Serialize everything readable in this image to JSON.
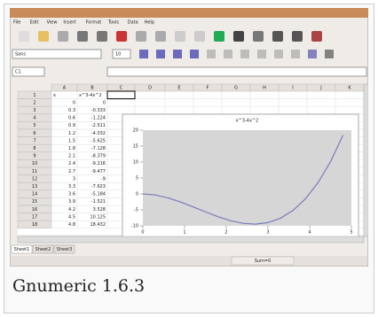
{
  "window": {
    "menu": [
      "File",
      "Edit",
      "View",
      "Insert",
      "Format",
      "Tools",
      "Data",
      "Help"
    ],
    "font_name": "Sans",
    "font_size": "10",
    "cell_ref": "C1"
  },
  "sheet": {
    "columns": [
      "A",
      "B",
      "C",
      "D",
      "E",
      "F",
      "G",
      "H",
      "I",
      "J",
      "K"
    ],
    "rows": [
      1,
      2,
      3,
      4,
      5,
      6,
      7,
      8,
      9,
      10,
      11,
      12,
      13,
      14,
      15,
      16,
      17,
      18
    ],
    "cells": [
      [
        "x",
        "x^3-4x^2"
      ],
      [
        0,
        0
      ],
      [
        0.3,
        -0.333
      ],
      [
        0.6,
        -1.224
      ],
      [
        0.9,
        -2.511
      ],
      [
        1.2,
        -4.032
      ],
      [
        1.5,
        -5.625
      ],
      [
        1.8,
        -7.128
      ],
      [
        2.1,
        -8.379
      ],
      [
        2.4,
        -9.216
      ],
      [
        2.7,
        -9.477
      ],
      [
        3,
        -9
      ],
      [
        3.3,
        -7.623
      ],
      [
        3.6,
        -5.184
      ],
      [
        3.9,
        -1.521
      ],
      [
        4.2,
        3.528
      ],
      [
        4.5,
        10.125
      ],
      [
        4.8,
        18.432
      ]
    ]
  },
  "tabs": [
    "Sheet1",
    "Sheet2",
    "Sheet3"
  ],
  "status": "Sum=0",
  "chart_data": {
    "type": "line",
    "title": "x^3-4x^2",
    "color": "#7b7bbd",
    "x": [
      0,
      0.3,
      0.6,
      0.9,
      1.2,
      1.5,
      1.8,
      2.1,
      2.4,
      2.7,
      3,
      3.3,
      3.6,
      3.9,
      4.2,
      4.5,
      4.8
    ],
    "values": [
      0,
      -0.333,
      -1.224,
      -2.511,
      -4.032,
      -5.625,
      -7.128,
      -8.379,
      -9.216,
      -9.477,
      -9,
      -7.623,
      -5.184,
      -1.521,
      3.528,
      10.125,
      18.432
    ],
    "xlim": [
      0,
      5
    ],
    "ylim": [
      -10,
      20
    ],
    "xticks": [
      0,
      1,
      2,
      3,
      4,
      5
    ],
    "yticks": [
      -10,
      -5,
      0,
      5,
      10,
      15,
      20
    ]
  },
  "caption": "Gnumeric 1.6.3"
}
